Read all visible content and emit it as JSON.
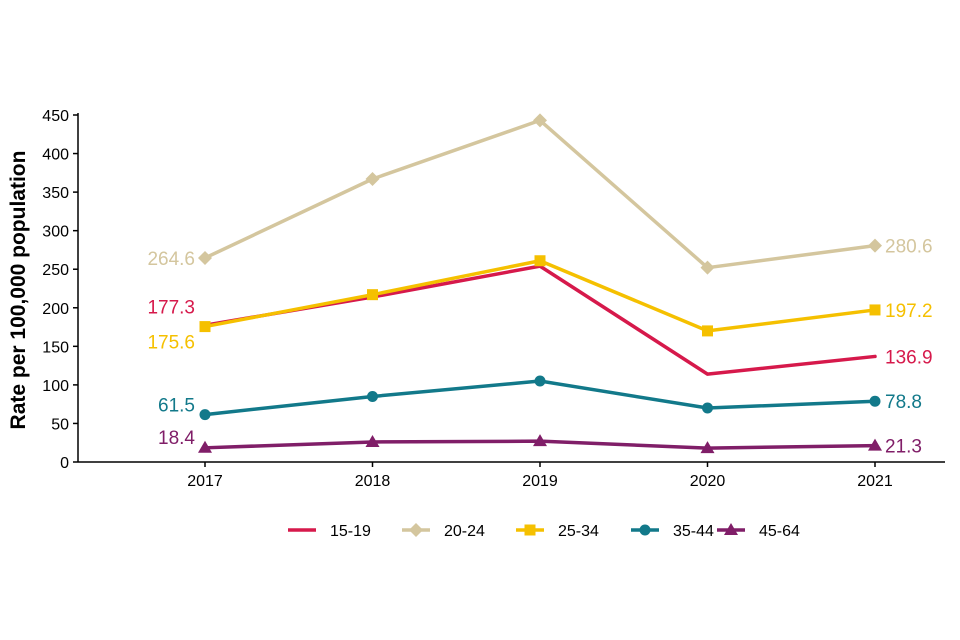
{
  "chart_data": {
    "type": "line",
    "title": "",
    "xlabel": "",
    "ylabel": "Rate per 100,000 population",
    "ylim": [
      0,
      450
    ],
    "yticks": [
      0,
      50,
      100,
      150,
      200,
      250,
      300,
      350,
      400,
      450
    ],
    "categories": [
      "2017",
      "2018",
      "2019",
      "2020",
      "2021"
    ],
    "legend_position": "bottom",
    "series": [
      {
        "name": "15-19",
        "color": "#D6194B",
        "marker": "none",
        "values": [
          177.3,
          214,
          254,
          114,
          136.9
        ]
      },
      {
        "name": "20-24",
        "color": "#D4C69E",
        "marker": "diamond",
        "values": [
          264.6,
          367,
          443,
          252,
          280.6
        ]
      },
      {
        "name": "25-34",
        "color": "#F5C000",
        "marker": "square",
        "values": [
          175.6,
          217,
          261,
          170,
          197.2
        ]
      },
      {
        "name": "35-44",
        "color": "#12798A",
        "marker": "circle",
        "values": [
          61.5,
          85,
          105,
          70,
          78.8
        ]
      },
      {
        "name": "45-64",
        "color": "#801E68",
        "marker": "triangle",
        "values": [
          18.4,
          26,
          27,
          18,
          21.3
        ]
      }
    ],
    "annotations": [
      {
        "series": "20-24",
        "point": 0,
        "text": "264.6"
      },
      {
        "series": "20-24",
        "point": 4,
        "text": "280.6"
      },
      {
        "series": "15-19",
        "point": 0,
        "text": "177.3"
      },
      {
        "series": "15-19",
        "point": 4,
        "text": "136.9"
      },
      {
        "series": "25-34",
        "point": 0,
        "text": "175.6"
      },
      {
        "series": "25-34",
        "point": 4,
        "text": "197.2"
      },
      {
        "series": "35-44",
        "point": 0,
        "text": "61.5"
      },
      {
        "series": "35-44",
        "point": 4,
        "text": "78.8"
      },
      {
        "series": "45-64",
        "point": 0,
        "text": "18.4"
      },
      {
        "series": "45-64",
        "point": 4,
        "text": "21.3"
      }
    ]
  }
}
